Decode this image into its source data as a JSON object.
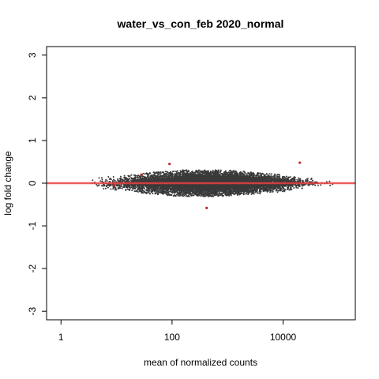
{
  "chart_data": {
    "type": "scatter",
    "title": "water_vs_con_feb 2020_normal",
    "xlabel": "mean of normalized counts",
    "ylabel": "log fold change",
    "x_scale": "log10",
    "xlim": [
      0.55,
      200000
    ],
    "ylim": [
      -3.2,
      3.2
    ],
    "x_ticks": [
      1,
      100,
      10000
    ],
    "x_tick_labels": [
      "1",
      "100",
      "10000"
    ],
    "y_ticks": [
      -3,
      -2,
      -1,
      0,
      1,
      2,
      3
    ],
    "y_tick_labels": [
      "-3",
      "-2",
      "-1",
      "0",
      "1",
      "2",
      "3"
    ],
    "grid": false,
    "reference_line": {
      "y": 0,
      "color": "#e8413f"
    },
    "point_color": "#3a3a3a",
    "highlight_color": "#c0262b",
    "density_envelope": {
      "x": [
        0.6,
        1,
        3,
        10,
        30,
        100,
        300,
        1000,
        3000,
        10000,
        30000,
        100000
      ],
      "lfc_half_width": [
        0.02,
        0.05,
        0.1,
        0.17,
        0.24,
        0.3,
        0.32,
        0.3,
        0.26,
        0.2,
        0.12,
        0.05
      ]
    },
    "series": [
      {
        "name": "",
        "highlighted_points": [
          {
            "x": 90,
            "y": 0.45
          },
          {
            "x": 20000,
            "y": 0.48
          },
          {
            "x": 420,
            "y": -0.58
          },
          {
            "x": 28,
            "y": 0.2
          },
          {
            "x": 9,
            "y": -0.05
          }
        ]
      }
    ]
  }
}
